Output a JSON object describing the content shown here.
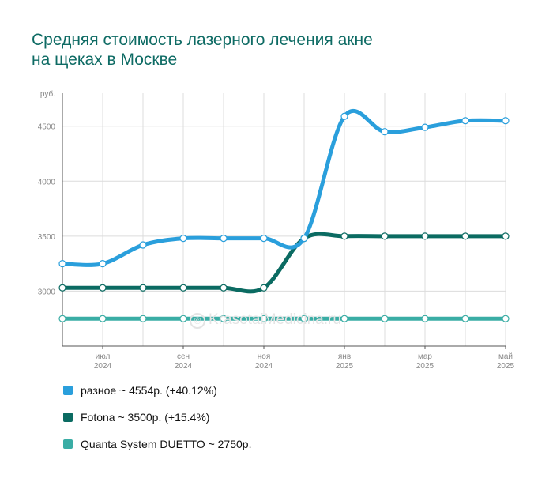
{
  "chart_data": {
    "type": "line",
    "title_lines": [
      "Средняя стоимость лазерного лечения акне",
      "на щеках в Москве"
    ],
    "y_unit": "руб.",
    "ylim": [
      2500,
      4800
    ],
    "yticks": [
      3000,
      3500,
      4000,
      4500
    ],
    "grid": true,
    "x_ticks": [
      {
        "x": 1,
        "month": "июл",
        "year": "2024"
      },
      {
        "x": 3,
        "month": "сен",
        "year": "2024"
      },
      {
        "x": 5,
        "month": "ноя",
        "year": "2024"
      },
      {
        "x": 7,
        "month": "янв",
        "year": "2025"
      },
      {
        "x": 9,
        "month": "мар",
        "year": "2025"
      },
      {
        "x": 11,
        "month": "май",
        "year": "2025"
      }
    ],
    "xlim": [
      0,
      11
    ],
    "series": [
      {
        "name": "разное",
        "legend": "разное ~ 4554р. (+40.12%)",
        "color": "#2a9fdc",
        "values": [
          3250,
          3250,
          3420,
          3480,
          3480,
          3480,
          3480,
          4590,
          4450,
          4490,
          4550,
          4550
        ]
      },
      {
        "name": "Fotona",
        "legend": "Fotona ~ 3500р. (+15.4%)",
        "color": "#0b6b62",
        "values": [
          3030,
          3030,
          3030,
          3030,
          3030,
          3030,
          3480,
          3500,
          3500,
          3500,
          3500,
          3500
        ]
      },
      {
        "name": "Quanta System DUETTO",
        "legend": "Quanta System DUETTO ~ 2750р.",
        "color": "#3aada5",
        "values": [
          2750,
          2750,
          2750,
          2750,
          2750,
          2750,
          2750,
          2750,
          2750,
          2750,
          2750,
          2750
        ]
      }
    ]
  },
  "watermark": "KrasotaiMedicina.ru"
}
